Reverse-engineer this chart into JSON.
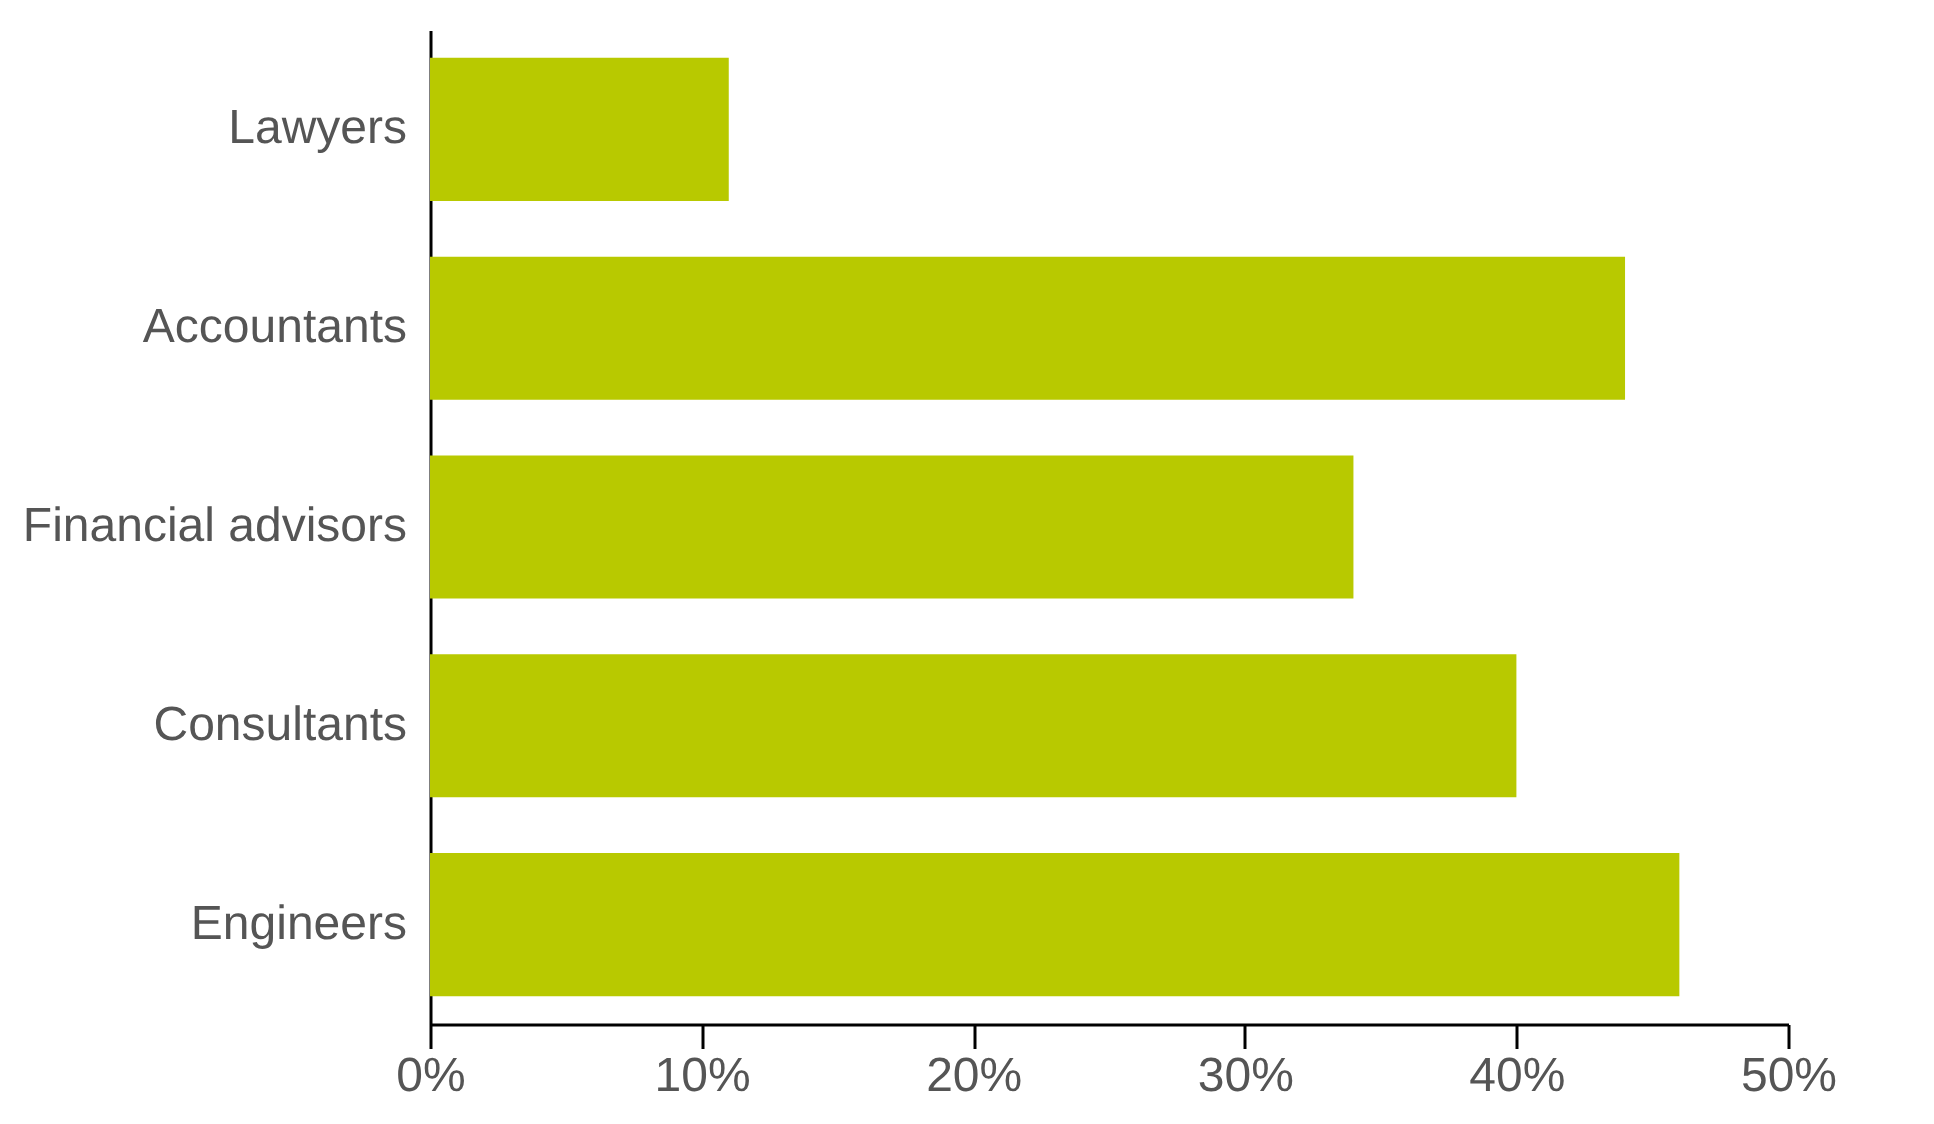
{
  "chart_data": {
    "type": "bar",
    "orientation": "horizontal",
    "categories": [
      "Lawyers",
      "Accountants",
      "Financial advisors",
      "Consultants",
      "Engineers"
    ],
    "values": [
      11,
      44,
      34,
      40,
      46
    ],
    "color": "#b8c900",
    "xlim": [
      0,
      50
    ],
    "xticks": [
      {
        "value": 0,
        "label": "0%"
      },
      {
        "value": 10,
        "label": "10%"
      },
      {
        "value": 20,
        "label": "20%"
      },
      {
        "value": 30,
        "label": "30%"
      },
      {
        "value": 40,
        "label": "40%"
      },
      {
        "value": 50,
        "label": "50%"
      }
    ],
    "grid": false
  }
}
